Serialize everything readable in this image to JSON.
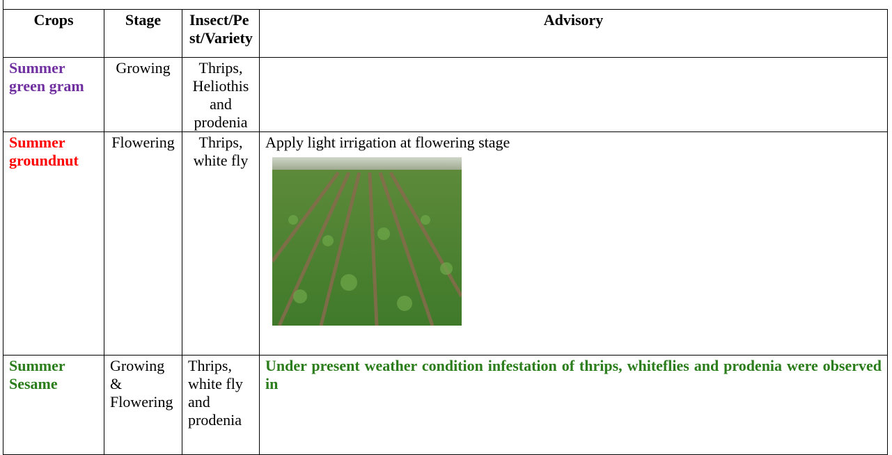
{
  "table": {
    "header": [
      "Crops",
      "Stage",
      "Insect/Pest/Variety",
      "Advisory"
    ],
    "rows": [
      {
        "crop": "Summer green gram",
        "stage": "Growing",
        "pest": "Thrips, Heliothis and prodenia"
      },
      {
        "crop": "Summer groundnut",
        "stage": "Flowering",
        "pest": "Thrips, white fly",
        "advisory": "Apply light irrigation at flowering stage"
      },
      {
        "crop": "Summer Sesame",
        "stage": "Growing & Flowering",
        "pest": "Thrips, white fly and prodenia",
        "advisory": "Under present weather condition  infestation of thrips, whiteflies and prodenia were observed  in"
      }
    ]
  }
}
